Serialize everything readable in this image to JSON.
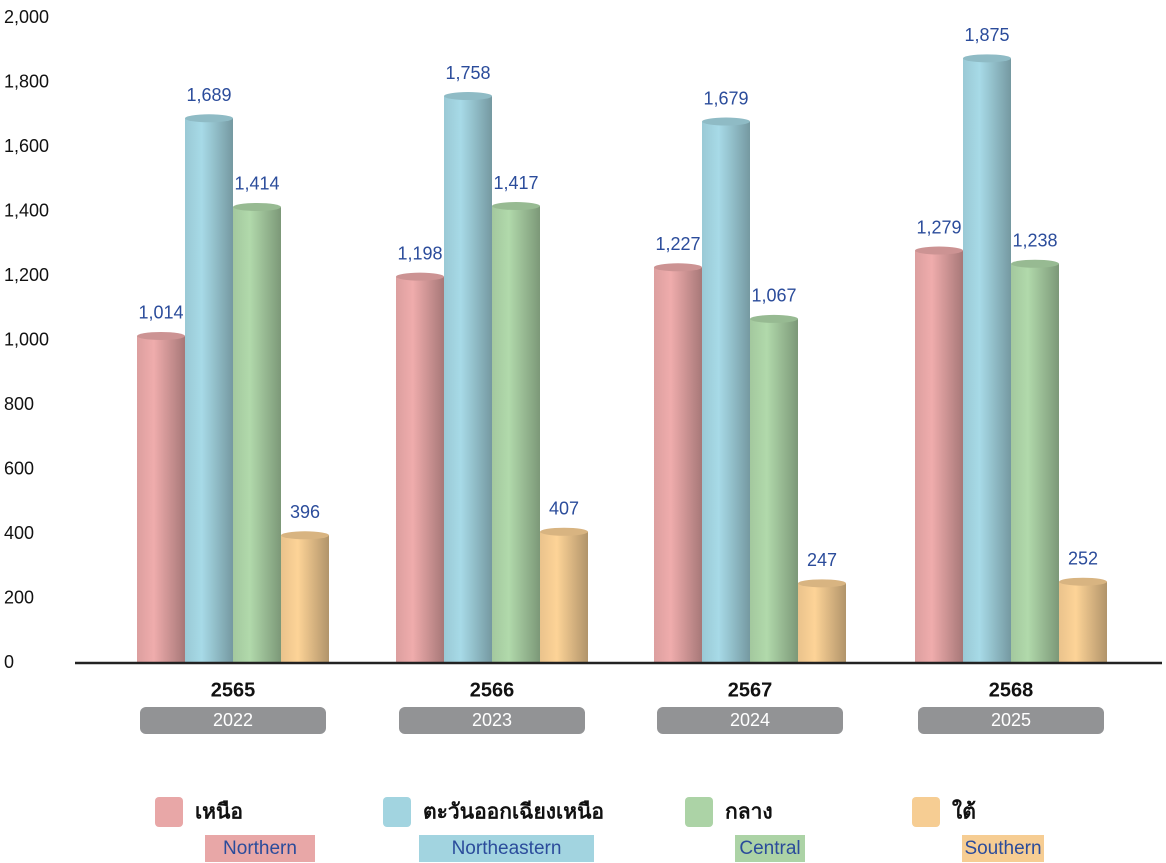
{
  "chart_data": {
    "type": "bar",
    "categories": [
      "2565",
      "2566",
      "2567",
      "2568"
    ],
    "category_sublabels": [
      "2022",
      "2023",
      "2024",
      "2025"
    ],
    "series": [
      {
        "name": "เหนือ",
        "name_en": "Northern",
        "color": "#e8a7a7",
        "values": [
          1014,
          1198,
          1227,
          1279
        ],
        "value_labels": [
          "1,014",
          "1,198",
          "1,227",
          "1,279"
        ]
      },
      {
        "name": "ตะวันออกเฉียงเหนือ",
        "name_en": "Northeastern",
        "color": "#a2d4e0",
        "values": [
          1689,
          1758,
          1679,
          1875
        ],
        "value_labels": [
          "1,689",
          "1,758",
          "1,679",
          "1,875"
        ]
      },
      {
        "name": "กลาง",
        "name_en": "Central",
        "color": "#acd3a6",
        "values": [
          1414,
          1417,
          1067,
          1238
        ],
        "value_labels": [
          "1,414",
          "1,417",
          "1,067",
          "1,238"
        ]
      },
      {
        "name": "ใต้",
        "name_en": "Southern",
        "color": "#f6cd93",
        "values": [
          396,
          407,
          247,
          252
        ],
        "value_labels": [
          "396",
          "407",
          "247",
          "252"
        ]
      }
    ],
    "ylim": [
      0,
      2000
    ],
    "yticks": [
      0,
      200,
      400,
      600,
      800,
      {
        "value": 1000,
        "label": "1,000"
      },
      {
        "value": 1200,
        "label": "1,200"
      },
      {
        "value": 1400,
        "label": "1,400"
      },
      {
        "value": 1600,
        "label": "1,600"
      },
      {
        "value": 1800,
        "label": "1,800"
      },
      {
        "value": 2000,
        "label": "2,000"
      }
    ],
    "grid": false
  }
}
